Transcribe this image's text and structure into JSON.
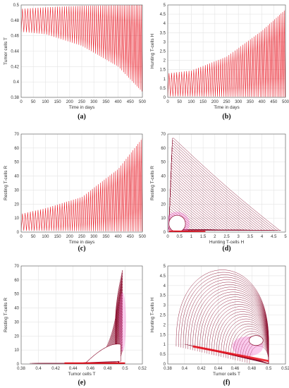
{
  "figure": {
    "panels": [
      "a",
      "b",
      "c",
      "d",
      "e",
      "f"
    ]
  },
  "colors": {
    "series": "#e8101c",
    "orbit": "#8b1030",
    "halo": "#f06acb"
  },
  "chart_data": [
    {
      "id": "a",
      "type": "line",
      "caption": "(a)",
      "xlabel": "Time in days",
      "ylabel": "Tumor cells T",
      "xlim": [
        0,
        500
      ],
      "ylim": [
        0.38,
        0.5
      ],
      "xticks": [
        "0",
        "50",
        "100",
        "150",
        "200",
        "250",
        "300",
        "350",
        "400",
        "450",
        "500"
      ],
      "yticks": [
        "0.38",
        "0.4",
        "0.42",
        "0.44",
        "0.46",
        "0.48",
        "0.5"
      ],
      "grid": true,
      "series": [
        {
          "kind": "oscillation",
          "upper": [
            [
              0,
              0.495
            ],
            [
              100,
              0.497
            ],
            [
              250,
              0.499
            ],
            [
              500,
              0.5
            ]
          ],
          "lower": [
            [
              0,
              0.465
            ],
            [
              100,
              0.462
            ],
            [
              250,
              0.447
            ],
            [
              400,
              0.42
            ],
            [
              500,
              0.387
            ]
          ]
        }
      ]
    },
    {
      "id": "b",
      "type": "line",
      "caption": "(b)",
      "xlabel": "Time in days",
      "ylabel": "Hunting T-cells H",
      "xlim": [
        0,
        500
      ],
      "ylim": [
        0,
        5
      ],
      "xticks": [
        "0",
        "50",
        "100",
        "150",
        "200",
        "250",
        "300",
        "350",
        "400",
        "450",
        "500"
      ],
      "yticks": [
        "0",
        "0.5",
        "1",
        "1.5",
        "2",
        "2.5",
        "3",
        "3.5",
        "4",
        "4.5",
        "5"
      ],
      "grid": true,
      "series": [
        {
          "kind": "oscillation",
          "upper": [
            [
              0,
              1.3
            ],
            [
              100,
              1.45
            ],
            [
              250,
              2.2
            ],
            [
              400,
              3.6
            ],
            [
              500,
              4.75
            ]
          ],
          "lower": [
            [
              0,
              0.05
            ],
            [
              500,
              0.02
            ]
          ]
        }
      ]
    },
    {
      "id": "c",
      "type": "line",
      "caption": "(c)",
      "xlabel": "Time in days",
      "ylabel": "Resting T-cells R",
      "xlim": [
        0,
        500
      ],
      "ylim": [
        0,
        70
      ],
      "xticks": [
        "0",
        "50",
        "100",
        "150",
        "200",
        "250",
        "300",
        "350",
        "400",
        "450",
        "500"
      ],
      "yticks": [
        "0",
        "10",
        "20",
        "30",
        "40",
        "50",
        "60",
        "70"
      ],
      "grid": true,
      "series": [
        {
          "kind": "oscillation",
          "upper": [
            [
              0,
              13
            ],
            [
              100,
              17
            ],
            [
              250,
              25
            ],
            [
              400,
              45
            ],
            [
              500,
              67
            ]
          ],
          "lower": [
            [
              0,
              1
            ],
            [
              500,
              0.5
            ]
          ]
        }
      ]
    },
    {
      "id": "d",
      "type": "line",
      "caption": "(d)",
      "xlabel": "Hunting T-cells H",
      "ylabel": "Resting T-cells R",
      "xlim": [
        0,
        5
      ],
      "ylim": [
        0,
        70
      ],
      "xticks": [
        "0",
        "0.5",
        "1",
        "1.5",
        "2",
        "2.5",
        "3",
        "3.5",
        "4",
        "4.5",
        "5"
      ],
      "yticks": [
        "0",
        "10",
        "20",
        "30",
        "40",
        "50",
        "60",
        "70"
      ],
      "grid": true,
      "series": [
        {
          "kind": "phase",
          "outer_peak_y": 67,
          "outer_max_x": 4.8,
          "inner_center": [
            0.4,
            6
          ],
          "inner_size": [
            0.7,
            12
          ]
        }
      ]
    },
    {
      "id": "e",
      "type": "line",
      "caption": "(e)",
      "xlabel": "Tumor cells T",
      "ylabel": "Resting T-cells R",
      "xlim": [
        0.38,
        0.52
      ],
      "ylim": [
        0,
        70
      ],
      "xticks": [
        "0.38",
        "0.4",
        "0.42",
        "0.44",
        "0.46",
        "0.48",
        "0.5",
        "0.52"
      ],
      "yticks": [
        "0",
        "10",
        "20",
        "30",
        "40",
        "50",
        "60",
        "70"
      ],
      "grid": true,
      "series": [
        {
          "kind": "phase",
          "peak": [
            0.497,
            67
          ],
          "left_min_x": 0.39,
          "inner_loop_center": [
            0.49,
            12
          ]
        }
      ]
    },
    {
      "id": "f",
      "type": "line",
      "caption": "(f)",
      "xlabel": "Tumor cells T",
      "ylabel": "Hunting T-cells H",
      "xlim": [
        0.38,
        0.52
      ],
      "ylim": [
        0,
        5
      ],
      "xticks": [
        "0.38",
        "0.4",
        "0.42",
        "0.44",
        "0.46",
        "0.48",
        "0.5",
        "0.52"
      ],
      "yticks": [
        "0",
        "0.5",
        "1",
        "1.5",
        "2",
        "2.5",
        "3",
        "3.5",
        "4",
        "4.5",
        "5"
      ],
      "grid": true,
      "series": [
        {
          "kind": "phase",
          "outer_peak": [
            0.445,
            4.8
          ],
          "outer_min_x": 0.39,
          "inner_loop_center": [
            0.485,
            1.2
          ]
        }
      ]
    }
  ]
}
